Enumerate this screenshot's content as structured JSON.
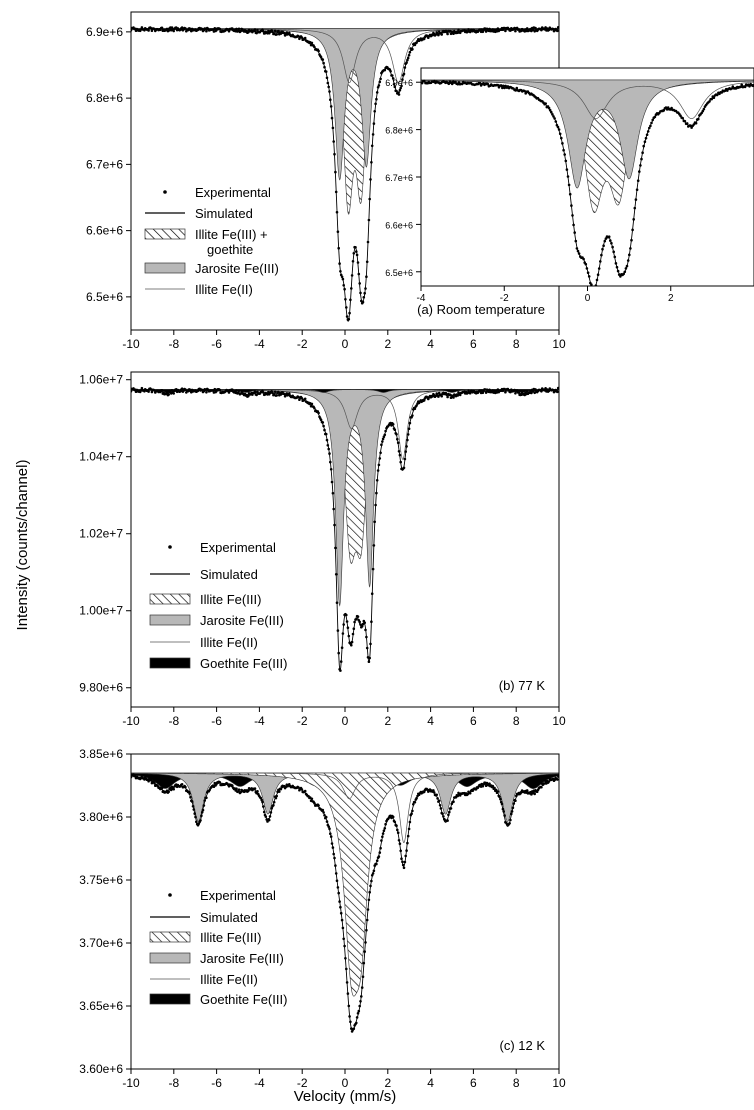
{
  "figure": {
    "ylabel": "Intensity (counts/channel)",
    "xlabel": "Velocity (mm/s)"
  },
  "chart_data": [
    {
      "id": "a",
      "type": "scatter",
      "annotation": "(a) Room  temperature",
      "xlim": [
        -10,
        10
      ],
      "ylim": [
        6.45,
        6.93
      ],
      "ytick_values": [
        6.5,
        6.6,
        6.7,
        6.8,
        6.9
      ],
      "yticks": [
        "6.5e+6",
        "6.6e+6",
        "6.7e+6",
        "6.8e+6",
        "6.9e+6"
      ],
      "xticks": [
        "-10",
        "-8",
        "-6",
        "-4",
        "-2",
        "0",
        "2",
        "4",
        "6",
        "8",
        "10"
      ],
      "baseline": 6.905,
      "legend": [
        {
          "label": "Experimental",
          "kind": "dot"
        },
        {
          "label": "Simulated",
          "kind": "line"
        },
        {
          "label": "Illite Fe(III) +",
          "label2": "goethite",
          "kind": "hatch"
        },
        {
          "label": "Jarosite Fe(III)",
          "kind": "gray"
        },
        {
          "label": "Illite Fe(II)",
          "kind": "thin"
        }
      ],
      "components": [
        {
          "name": "Illite Fe(III) + goethite",
          "fill": "hatch",
          "peaks": [
            {
              "c": 0.15,
              "d": 0.24,
              "w": 0.28
            },
            {
              "c": 0.75,
              "d": 0.22,
              "w": 0.28
            }
          ]
        },
        {
          "name": "Jarosite Fe(III)",
          "fill": "gray",
          "peaks": [
            {
              "c": -0.25,
              "d": 0.22,
              "w": 0.26
            },
            {
              "c": 1.0,
              "d": 0.2,
              "w": 0.26
            }
          ]
        },
        {
          "name": "Illite Fe(II)",
          "fill": "none",
          "peaks": [
            {
              "c": 0.2,
              "d": 0.08,
              "w": 0.35
            },
            {
              "c": 2.5,
              "d": 0.08,
              "w": 0.35
            }
          ]
        }
      ],
      "experimental_minimum": {
        "x": -0.3,
        "y": 6.52
      }
    },
    {
      "id": "a-inset",
      "type": "scatter",
      "xlim": [
        -4,
        4
      ],
      "ylim": [
        6.47,
        6.93
      ],
      "ytick_values": [
        6.5,
        6.6,
        6.7,
        6.8,
        6.9
      ],
      "yticks": [
        "6.5e+6",
        "6.6e+6",
        "6.7e+6",
        "6.8e+6",
        "6.9e+6"
      ],
      "xtick_values": [
        -4,
        -2,
        0,
        2
      ],
      "xticks": [
        "-4",
        "-2",
        "0",
        "2"
      ],
      "baseline": 6.905
    },
    {
      "id": "b",
      "type": "scatter",
      "annotation": "(b) 77 K",
      "xlim": [
        -10,
        10
      ],
      "ylim": [
        9.75,
        10.62
      ],
      "ytick_values": [
        9.8,
        10.0,
        10.2,
        10.4,
        10.6
      ],
      "yticks": [
        "9.80e+6",
        "1.00e+7",
        "1.02e+7",
        "1.04e+7",
        "1.06e+7"
      ],
      "xticks": [
        "-10",
        "-8",
        "-6",
        "-4",
        "-2",
        "0",
        "2",
        "4",
        "6",
        "8",
        "10"
      ],
      "baseline": 10.575,
      "legend": [
        {
          "label": "Experimental",
          "kind": "dot"
        },
        {
          "label": "Simulated",
          "kind": "line"
        },
        {
          "label": "Illite Fe(III)",
          "kind": "hatch"
        },
        {
          "label": "Jarosite Fe(III)",
          "kind": "gray"
        },
        {
          "label": "Illite Fe(II)",
          "kind": "thin"
        },
        {
          "label": "Goethite Fe(III)",
          "kind": "black"
        }
      ],
      "experimental_minimum": {
        "x": -0.2,
        "y": 9.84
      }
    },
    {
      "id": "c",
      "type": "scatter",
      "annotation": "(c) 12 K",
      "xlim": [
        -10,
        10
      ],
      "ylim": [
        3.6,
        3.85
      ],
      "ytick_values": [
        3.6,
        3.65,
        3.7,
        3.75,
        3.8,
        3.85
      ],
      "yticks": [
        "3.60e+6",
        "3.65e+6",
        "3.70e+6",
        "3.75e+6",
        "3.80e+6",
        "3.85e+6"
      ],
      "xticks": [
        "-10",
        "-8",
        "-6",
        "-4",
        "-2",
        "0",
        "2",
        "4",
        "6",
        "8",
        "10"
      ],
      "baseline": 3.835,
      "legend": [
        {
          "label": "Experimental",
          "kind": "dot"
        },
        {
          "label": "Simulated",
          "kind": "line"
        },
        {
          "label": "Illite Fe(III)",
          "kind": "hatch"
        },
        {
          "label": "Jarosite Fe(III)",
          "kind": "gray"
        },
        {
          "label": "Illite Fe(II)",
          "kind": "thin"
        },
        {
          "label": "Goethite Fe(III)",
          "kind": "black"
        }
      ],
      "experimental_minimum": {
        "x": 0.3,
        "y": 3.625
      }
    }
  ]
}
